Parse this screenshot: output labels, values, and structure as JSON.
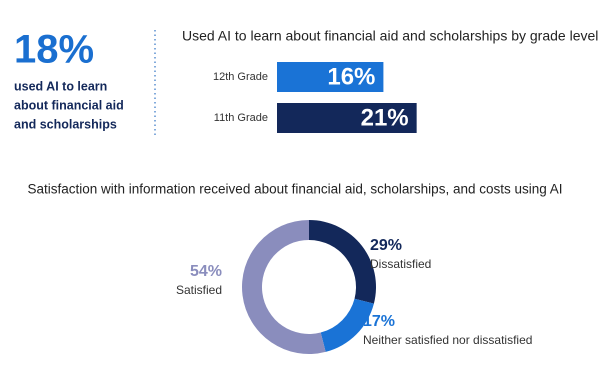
{
  "highlight": {
    "figure": "18%",
    "text_lines": [
      "used AI to learn",
      "about financial aid",
      "and scholarships"
    ]
  },
  "chart_data": [
    {
      "type": "bar",
      "orientation": "horizontal",
      "title": "Used AI to learn about financial aid and scholarships by grade level",
      "categories": [
        "12th Grade",
        "11th Grade"
      ],
      "values": [
        16,
        21
      ],
      "value_labels": [
        "16%",
        "21%"
      ],
      "colors": [
        "#1a73d6",
        "#13285a"
      ]
    },
    {
      "type": "donut",
      "title": "Satisfaction with information received about financial aid, scholarships, and costs using AI",
      "categories": [
        "Dissatisfied",
        "Neither satisfied nor dissatisfied",
        "Satisfied"
      ],
      "values": [
        29,
        17,
        54
      ],
      "value_labels": [
        "29%",
        "17%",
        "54%"
      ],
      "colors": [
        "#13285a",
        "#1a73d6",
        "#8a8dbd"
      ]
    }
  ]
}
